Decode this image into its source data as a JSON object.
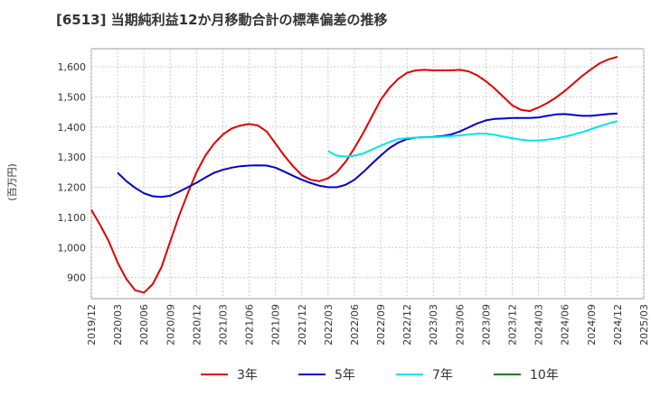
{
  "chart_data": {
    "type": "line",
    "title": "[6513]  当期純利益12か月移動合計の標準偏差の推移",
    "ylabel": "(百万円)",
    "xlabel": "",
    "ylim": [
      830,
      1660
    ],
    "yticks": [
      900,
      1000,
      1100,
      1200,
      1300,
      1400,
      1500,
      1600
    ],
    "ytick_labels": [
      "900",
      "1,000",
      "1,100",
      "1,200",
      "1,300",
      "1,400",
      "1,500",
      "1,600"
    ],
    "x_range": [
      "2019-12",
      "2025-03"
    ],
    "xtick_labels": [
      "2019/12",
      "2020/03",
      "2020/06",
      "2020/09",
      "2020/12",
      "2021/03",
      "2021/06",
      "2021/09",
      "2021/12",
      "2022/03",
      "2022/06",
      "2022/09",
      "2022/12",
      "2023/03",
      "2023/06",
      "2023/09",
      "2023/12",
      "2024/03",
      "2024/06",
      "2024/09",
      "2024/12",
      "2025/03"
    ],
    "grid": true,
    "legend_position": "bottom",
    "series": [
      {
        "name": "3年",
        "color": "#e00000",
        "x": [
          "2019-12",
          "2020-01",
          "2020-02",
          "2020-03",
          "2020-04",
          "2020-05",
          "2020-06",
          "2020-07",
          "2020-08",
          "2020-09",
          "2020-10",
          "2020-11",
          "2020-12",
          "2021-01",
          "2021-02",
          "2021-03",
          "2021-04",
          "2021-05",
          "2021-06",
          "2021-07",
          "2021-08",
          "2021-09",
          "2021-10",
          "2021-11",
          "2021-12",
          "2022-01",
          "2022-02",
          "2022-03",
          "2022-04",
          "2022-05",
          "2022-06",
          "2022-07",
          "2022-08",
          "2022-09",
          "2022-10",
          "2022-11",
          "2022-12",
          "2023-01",
          "2023-02",
          "2023-03",
          "2023-04",
          "2023-05",
          "2023-06",
          "2023-07",
          "2023-08",
          "2023-09",
          "2023-10",
          "2023-11",
          "2023-12",
          "2024-01",
          "2024-02",
          "2024-03",
          "2024-04",
          "2024-05",
          "2024-06",
          "2024-07",
          "2024-08",
          "2024-09",
          "2024-10",
          "2024-11",
          "2024-12"
        ],
        "values": [
          1125,
          1075,
          1020,
          950,
          895,
          858,
          850,
          878,
          935,
          1020,
          1105,
          1180,
          1250,
          1305,
          1345,
          1375,
          1395,
          1405,
          1410,
          1405,
          1385,
          1345,
          1305,
          1270,
          1240,
          1225,
          1220,
          1230,
          1250,
          1285,
          1330,
          1380,
          1435,
          1490,
          1530,
          1560,
          1580,
          1588,
          1590,
          1588,
          1588,
          1588,
          1590,
          1585,
          1572,
          1552,
          1528,
          1500,
          1472,
          1457,
          1453,
          1465,
          1480,
          1498,
          1520,
          1545,
          1570,
          1592,
          1612,
          1625,
          1633
        ]
      },
      {
        "name": "5年",
        "color": "#0000cc",
        "x": [
          "2020-03",
          "2020-04",
          "2020-05",
          "2020-06",
          "2020-07",
          "2020-08",
          "2020-09",
          "2020-10",
          "2020-11",
          "2020-12",
          "2021-01",
          "2021-02",
          "2021-03",
          "2021-04",
          "2021-05",
          "2021-06",
          "2021-07",
          "2021-08",
          "2021-09",
          "2021-10",
          "2021-11",
          "2021-12",
          "2022-01",
          "2022-02",
          "2022-03",
          "2022-04",
          "2022-05",
          "2022-06",
          "2022-07",
          "2022-08",
          "2022-09",
          "2022-10",
          "2022-11",
          "2022-12",
          "2023-01",
          "2023-02",
          "2023-03",
          "2023-04",
          "2023-05",
          "2023-06",
          "2023-07",
          "2023-08",
          "2023-09",
          "2023-10",
          "2023-11",
          "2023-12",
          "2024-01",
          "2024-02",
          "2024-03",
          "2024-04",
          "2024-05",
          "2024-06",
          "2024-07",
          "2024-08",
          "2024-09",
          "2024-10",
          "2024-11",
          "2024-12"
        ],
        "values": [
          1248,
          1220,
          1198,
          1180,
          1170,
          1168,
          1172,
          1185,
          1200,
          1215,
          1232,
          1248,
          1258,
          1265,
          1270,
          1272,
          1273,
          1272,
          1265,
          1252,
          1238,
          1225,
          1214,
          1205,
          1200,
          1200,
          1208,
          1225,
          1250,
          1278,
          1305,
          1330,
          1348,
          1360,
          1365,
          1366,
          1367,
          1370,
          1375,
          1385,
          1398,
          1412,
          1422,
          1427,
          1428,
          1430,
          1430,
          1430,
          1432,
          1437,
          1442,
          1443,
          1440,
          1437,
          1437,
          1440,
          1443,
          1445
        ]
      },
      {
        "name": "7年",
        "color": "#00e5ee",
        "x": [
          "2022-03",
          "2022-04",
          "2022-05",
          "2022-06",
          "2022-07",
          "2022-08",
          "2022-09",
          "2022-10",
          "2022-11",
          "2022-12",
          "2023-01",
          "2023-02",
          "2023-03",
          "2023-04",
          "2023-05",
          "2023-06",
          "2023-07",
          "2023-08",
          "2023-09",
          "2023-10",
          "2023-11",
          "2023-12",
          "2024-01",
          "2024-02",
          "2024-03",
          "2024-04",
          "2024-05",
          "2024-06",
          "2024-07",
          "2024-08",
          "2024-09",
          "2024-10",
          "2024-11",
          "2024-12"
        ],
        "values": [
          1320,
          1305,
          1302,
          1305,
          1312,
          1325,
          1338,
          1350,
          1360,
          1363,
          1365,
          1366,
          1366,
          1368,
          1370,
          1372,
          1375,
          1378,
          1378,
          1374,
          1368,
          1363,
          1358,
          1355,
          1355,
          1358,
          1362,
          1368,
          1375,
          1383,
          1393,
          1403,
          1412,
          1420
        ]
      },
      {
        "name": "10年",
        "color": "#008000",
        "x": [],
        "values": []
      }
    ]
  }
}
